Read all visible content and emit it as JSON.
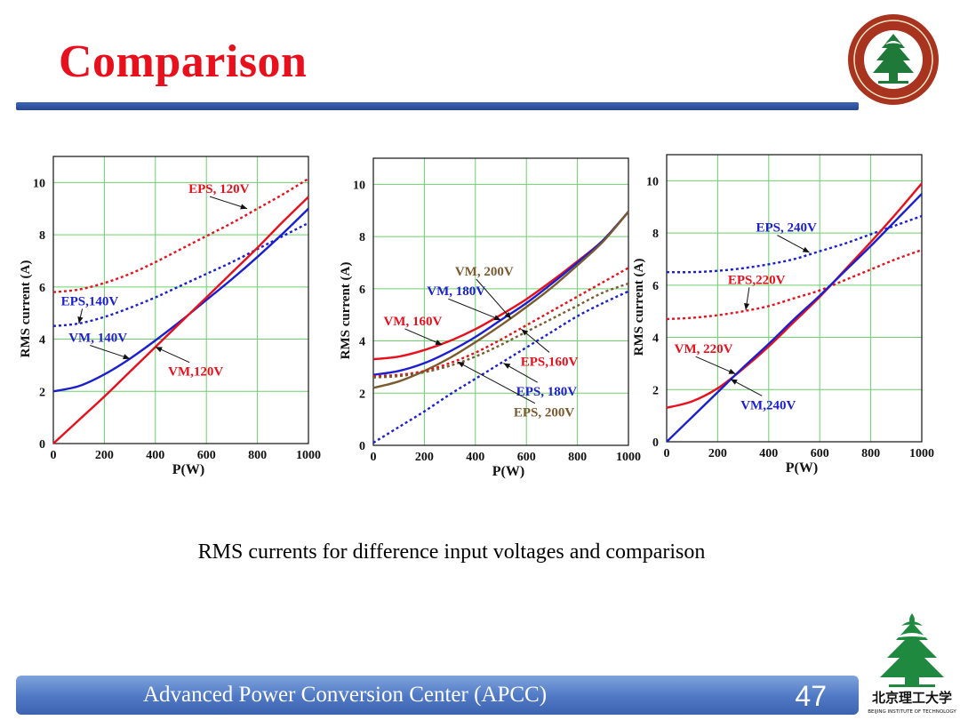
{
  "slide": {
    "title": "Comparison",
    "caption": "RMS currents for difference input voltages and comparison",
    "footer": "Advanced  Power  Conversion  Center (APCC)",
    "page_number": "47",
    "title_color": "#e8101c",
    "bar_color": "#3c63b4"
  },
  "logos": {
    "seal_icon": "university-seal-icon",
    "tree_icon": "university-tree-logo-icon",
    "logo_chinese": "北京理工大学",
    "logo_english": "BEIJING INSTITUTE OF TECHNOLOGY"
  },
  "chart_data": [
    {
      "type": "line",
      "xlabel": "P(W)",
      "ylabel": "RMS current (A)",
      "xlim": [
        0,
        1000
      ],
      "ylim": [
        0,
        11
      ],
      "xticks": [
        0,
        200,
        400,
        600,
        800,
        1000
      ],
      "yticks": [
        0,
        2,
        4,
        6,
        8,
        10
      ],
      "grid": true,
      "series": [
        {
          "name": "EPS, 120V",
          "color": "#e8101c",
          "dashed": true,
          "x": [
            0,
            100,
            200,
            300,
            400,
            500,
            600,
            700,
            800,
            900,
            1000
          ],
          "y": [
            5.8,
            5.9,
            6.15,
            6.5,
            6.95,
            7.45,
            7.95,
            8.45,
            9.0,
            9.55,
            10.15
          ]
        },
        {
          "name": "EPS,140V",
          "color": "#1b1fd0",
          "dashed": true,
          "x": [
            0,
            100,
            200,
            300,
            400,
            500,
            600,
            700,
            800,
            900,
            1000
          ],
          "y": [
            4.5,
            4.6,
            4.85,
            5.2,
            5.6,
            6.05,
            6.5,
            6.95,
            7.45,
            7.95,
            8.45
          ]
        },
        {
          "name": "VM, 140V",
          "color": "#1b1fd0",
          "dashed": false,
          "x": [
            0,
            100,
            200,
            300,
            400,
            500,
            600,
            700,
            800,
            900,
            1000
          ],
          "y": [
            2.0,
            2.2,
            2.65,
            3.25,
            3.95,
            4.7,
            5.5,
            6.3,
            7.15,
            8.05,
            9.0
          ]
        },
        {
          "name": "VM,120V",
          "color": "#e8101c",
          "dashed": false,
          "x": [
            0,
            100,
            200,
            300,
            400,
            500,
            600,
            700,
            800,
            900,
            1000
          ],
          "y": [
            0.0,
            0.9,
            1.8,
            2.75,
            3.7,
            4.65,
            5.6,
            6.55,
            7.5,
            8.5,
            9.45
          ]
        }
      ],
      "annotations": [
        {
          "text": "EPS, 120V",
          "color": "#e8101c",
          "at": [
            760,
            9.0
          ],
          "label": [
            530,
            9.6
          ],
          "anchor": "start"
        },
        {
          "text": "EPS,140V",
          "color": "#1b1fd0",
          "at": [
            100,
            4.6
          ],
          "label": [
            30,
            5.3
          ],
          "anchor": "start"
        },
        {
          "text": "VM, 140V",
          "color": "#1b1fd0",
          "at": [
            300,
            3.25
          ],
          "label": [
            60,
            3.9
          ],
          "anchor": "start"
        },
        {
          "text": "VM,120V",
          "color": "#e8101c",
          "at": [
            400,
            3.7
          ],
          "label": [
            450,
            2.6
          ],
          "anchor": "start"
        }
      ]
    },
    {
      "type": "line",
      "xlabel": "P(W)",
      "ylabel": "RMS current (A)",
      "xlim": [
        0,
        1000
      ],
      "ylim": [
        0,
        11
      ],
      "xticks": [
        0,
        200,
        400,
        600,
        800,
        1000
      ],
      "yticks": [
        0,
        2,
        4,
        6,
        8,
        10
      ],
      "grid": true,
      "series": [
        {
          "name": "VM, 160V",
          "color": "#e8101c",
          "dashed": false,
          "x": [
            0,
            100,
            200,
            300,
            400,
            500,
            600,
            700,
            800,
            900,
            1000
          ],
          "y": [
            3.3,
            3.4,
            3.65,
            4.0,
            4.45,
            5.0,
            5.6,
            6.3,
            7.05,
            7.85,
            8.95
          ]
        },
        {
          "name": "VM, 180V",
          "color": "#1b1fd0",
          "dashed": false,
          "x": [
            0,
            100,
            200,
            300,
            400,
            500,
            600,
            700,
            800,
            900,
            1000
          ],
          "y": [
            2.7,
            2.85,
            3.15,
            3.6,
            4.15,
            4.8,
            5.45,
            6.2,
            7.0,
            7.85,
            8.95
          ]
        },
        {
          "name": "VM, 200V",
          "color": "#7a5a2e",
          "dashed": false,
          "x": [
            0,
            100,
            200,
            300,
            400,
            500,
            600,
            700,
            800,
            900,
            1000
          ],
          "y": [
            2.2,
            2.45,
            2.85,
            3.35,
            3.95,
            4.6,
            5.3,
            6.05,
            6.9,
            7.8,
            8.95
          ]
        },
        {
          "name": "EPS,160V",
          "color": "#e8101c",
          "dashed": true,
          "x": [
            0,
            100,
            200,
            300,
            400,
            500,
            600,
            700,
            800,
            900,
            1000
          ],
          "y": [
            2.65,
            2.7,
            2.85,
            3.15,
            3.55,
            4.05,
            4.6,
            5.15,
            5.7,
            6.25,
            6.8
          ]
        },
        {
          "name": "EPS, 180V",
          "color": "#1b1fd0",
          "dashed": true,
          "x": [
            0,
            100,
            200,
            300,
            400,
            500,
            600,
            700,
            800,
            900,
            1000
          ],
          "y": [
            0.1,
            0.7,
            1.3,
            1.95,
            2.55,
            3.15,
            3.75,
            4.35,
            4.95,
            5.45,
            5.9
          ]
        },
        {
          "name": "EPS, 200V",
          "color": "#7a5a2e",
          "dashed": true,
          "x": [
            0,
            100,
            200,
            300,
            400,
            500,
            600,
            700,
            800,
            900,
            1000
          ],
          "y": [
            2.6,
            2.65,
            2.8,
            3.05,
            3.4,
            3.85,
            4.35,
            4.85,
            5.35,
            5.85,
            6.2
          ]
        }
      ],
      "annotations": [
        {
          "text": "VM, 200V",
          "color": "#7a5a2e",
          "at": [
            540,
            4.85
          ],
          "label": [
            320,
            6.5
          ],
          "anchor": "start"
        },
        {
          "text": "VM, 180V",
          "color": "#1b1fd0",
          "at": [
            500,
            4.8
          ],
          "label": [
            210,
            5.75
          ],
          "anchor": "start"
        },
        {
          "text": "VM, 160V",
          "color": "#e8101c",
          "at": [
            270,
            3.85
          ],
          "label": [
            40,
            4.6
          ],
          "anchor": "start"
        },
        {
          "text": "EPS,160V",
          "color": "#e8101c",
          "at": [
            580,
            4.45
          ],
          "label": [
            690,
            3.05
          ],
          "anchor": "middle"
        },
        {
          "text": "EPS, 180V",
          "color": "#1b1fd0",
          "at": [
            510,
            3.15
          ],
          "label": [
            560,
            1.9
          ],
          "anchor": "start"
        },
        {
          "text": "EPS, 200V",
          "color": "#7a5a2e",
          "at": [
            330,
            3.2
          ],
          "label": [
            550,
            1.1
          ],
          "anchor": "start"
        }
      ]
    },
    {
      "type": "line",
      "xlabel": "P(W)",
      "ylabel": "RMS current (A)",
      "xlim": [
        0,
        1000
      ],
      "ylim": [
        0,
        11
      ],
      "xticks": [
        0,
        200,
        400,
        600,
        800,
        1000
      ],
      "yticks": [
        0,
        2,
        4,
        6,
        8,
        10
      ],
      "grid": true,
      "series": [
        {
          "name": "EPS, 240V",
          "color": "#1b1fd0",
          "dashed": true,
          "x": [
            0,
            100,
            200,
            300,
            400,
            500,
            600,
            700,
            800,
            900,
            1000
          ],
          "y": [
            6.5,
            6.5,
            6.55,
            6.65,
            6.8,
            7.0,
            7.3,
            7.6,
            7.95,
            8.3,
            8.65
          ]
        },
        {
          "name": "EPS,220V",
          "color": "#e8101c",
          "dashed": true,
          "x": [
            0,
            100,
            200,
            300,
            400,
            500,
            600,
            700,
            800,
            900,
            1000
          ],
          "y": [
            4.7,
            4.75,
            4.85,
            5.0,
            5.2,
            5.5,
            5.8,
            6.2,
            6.6,
            7.0,
            7.35
          ]
        },
        {
          "name": "VM, 220V",
          "color": "#e8101c",
          "dashed": false,
          "x": [
            0,
            100,
            200,
            300,
            400,
            500,
            600,
            700,
            800,
            900,
            1000
          ],
          "y": [
            1.3,
            1.55,
            2.05,
            2.8,
            3.65,
            4.6,
            5.55,
            6.6,
            7.65,
            8.75,
            9.9
          ]
        },
        {
          "name": "VM,240V",
          "color": "#1b1fd0",
          "dashed": false,
          "x": [
            0,
            100,
            200,
            300,
            400,
            500,
            600,
            700,
            800,
            900,
            1000
          ],
          "y": [
            0.0,
            0.95,
            1.9,
            2.85,
            3.75,
            4.7,
            5.6,
            6.55,
            7.5,
            8.5,
            9.5
          ]
        }
      ],
      "annotations": [
        {
          "text": "EPS, 240V",
          "color": "#1b1fd0",
          "at": [
            560,
            7.25
          ],
          "label": [
            350,
            8.05
          ],
          "anchor": "start"
        },
        {
          "text": "EPS,220V",
          "color": "#e8101c",
          "at": [
            310,
            5.05
          ],
          "label": [
            240,
            6.05
          ],
          "anchor": "start"
        },
        {
          "text": "VM, 220V",
          "color": "#e8101c",
          "at": [
            270,
            2.6
          ],
          "label": [
            30,
            3.4
          ],
          "anchor": "start"
        },
        {
          "text": "VM,240V",
          "color": "#1b1fd0",
          "at": [
            250,
            2.4
          ],
          "label": [
            290,
            1.25
          ],
          "anchor": "start"
        }
      ]
    }
  ]
}
